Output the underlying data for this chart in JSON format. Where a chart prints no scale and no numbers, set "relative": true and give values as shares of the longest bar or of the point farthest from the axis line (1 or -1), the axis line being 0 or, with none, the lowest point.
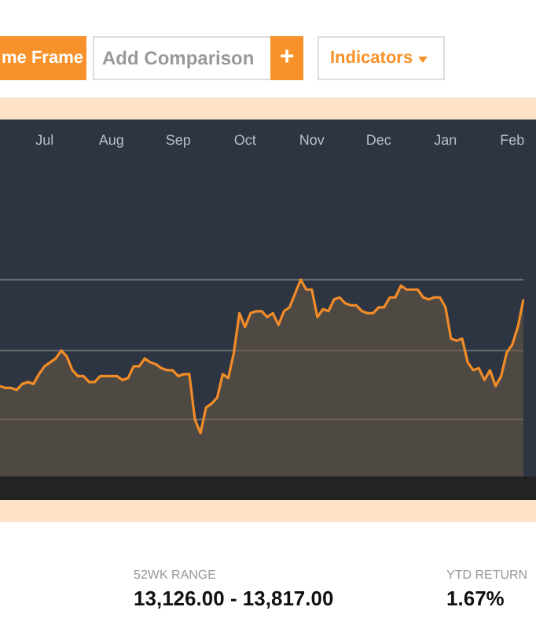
{
  "chart_data": {
    "type": "area",
    "relative": true,
    "legend": false,
    "marker": "none",
    "line_style": "solid",
    "ref_lines": [
      {
        "axis": "y",
        "value": 1.0,
        "color": "#6b6e72"
      },
      {
        "axis": "y",
        "value": 0.64,
        "color": "#6b6e72"
      },
      {
        "axis": "y",
        "value": 0.29,
        "color": "#6b6e72"
      }
    ],
    "annotations": [
      "me Frame",
      "Add Comparison",
      "+",
      "Indicators",
      "52WK RANGE",
      "13,126.00 - 13,817.00",
      "YTD RETURN",
      "1.67%"
    ],
    "categories": [
      null,
      null,
      null,
      null,
      null,
      null,
      null,
      null,
      "Jul",
      null,
      null,
      null,
      null,
      null,
      null,
      null,
      null,
      null,
      null,
      null,
      "Aug",
      null,
      null,
      null,
      null,
      null,
      null,
      null,
      null,
      null,
      null,
      null,
      "Sep",
      null,
      null,
      null,
      null,
      null,
      null,
      null,
      null,
      null,
      null,
      null,
      "Oct",
      null,
      null,
      null,
      null,
      null,
      null,
      null,
      null,
      null,
      null,
      null,
      "Nov",
      null,
      null,
      null,
      null,
      null,
      null,
      null,
      null,
      null,
      null,
      null,
      "Dec",
      null,
      null,
      null,
      null,
      null,
      null,
      null,
      null,
      null,
      null,
      null,
      "Jan",
      null,
      null,
      null,
      null,
      null,
      null,
      null,
      null,
      null,
      null,
      null,
      "Feb",
      null,
      null
    ],
    "series": [
      {
        "color": "#f28c28",
        "values": [
          0.46,
          0.45,
          0.45,
          0.44,
          0.47,
          0.48,
          0.47,
          0.52,
          0.56,
          0.58,
          0.6,
          0.64,
          0.61,
          0.54,
          0.51,
          0.51,
          0.48,
          0.48,
          0.51,
          0.51,
          0.51,
          0.51,
          0.49,
          0.5,
          0.56,
          0.56,
          0.6,
          0.58,
          0.57,
          0.55,
          0.54,
          0.54,
          0.51,
          0.52,
          0.52,
          0.29,
          0.22,
          0.35,
          0.37,
          0.4,
          0.52,
          0.5,
          0.63,
          0.83,
          0.76,
          0.83,
          0.84,
          0.84,
          0.81,
          0.83,
          0.77,
          0.84,
          0.86,
          0.93,
          1.0,
          0.95,
          0.95,
          0.81,
          0.85,
          0.84,
          0.9,
          0.91,
          0.88,
          0.87,
          0.87,
          0.84,
          0.83,
          0.83,
          0.86,
          0.86,
          0.91,
          0.91,
          0.97,
          0.95,
          0.95,
          0.95,
          0.91,
          0.9,
          0.91,
          0.91,
          0.86,
          0.7,
          0.69,
          0.7,
          0.58,
          0.54,
          0.55,
          0.49,
          0.54,
          0.46,
          0.51,
          0.63,
          0.67,
          0.76,
          0.9
        ]
      }
    ]
  }
}
